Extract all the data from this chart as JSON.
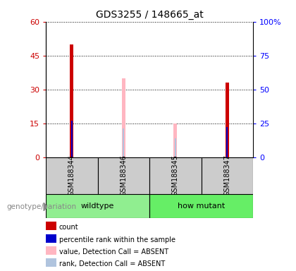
{
  "title": "GDS3255 / 148665_at",
  "samples": [
    "GSM188344",
    "GSM188346",
    "GSM188345",
    "GSM188347"
  ],
  "count_values": [
    50,
    0,
    0,
    33
  ],
  "percentile_values": [
    27,
    0,
    0,
    22
  ],
  "value_absent_values": [
    0,
    35,
    15,
    0
  ],
  "rank_absent_values": [
    0,
    21,
    14,
    0
  ],
  "ylim_left": [
    0,
    60
  ],
  "ylim_right": [
    0,
    100
  ],
  "yticks_left": [
    0,
    15,
    30,
    45,
    60
  ],
  "yticks_right": [
    0,
    25,
    50,
    75,
    100
  ],
  "count_color": "#CC0000",
  "percentile_color": "#0000CC",
  "value_absent_color": "#FFB6C1",
  "rank_absent_color": "#B0C4DE",
  "xlabel_text": "genotype/variation",
  "group_names": [
    "wildtype",
    "how mutant"
  ],
  "group_color_wt": "#90EE90",
  "group_color_hm": "#66EE66",
  "legend_items": [
    {
      "label": "count",
      "color": "#CC0000"
    },
    {
      "label": "percentile rank within the sample",
      "color": "#0000CC"
    },
    {
      "label": "value, Detection Call = ABSENT",
      "color": "#FFB6C1"
    },
    {
      "label": "rank, Detection Call = ABSENT",
      "color": "#B0C4DE"
    }
  ]
}
